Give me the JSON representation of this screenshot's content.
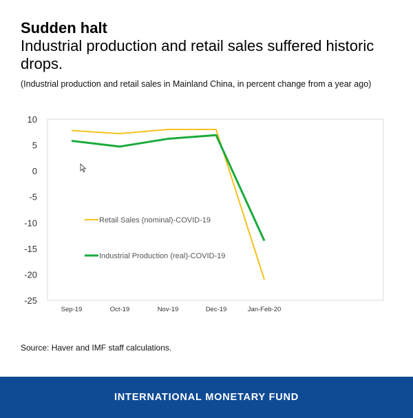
{
  "header": {
    "title": "Sudden halt",
    "subtitle": "Industrial production and retail sales suffered historic drops.",
    "note": "(Industrial production and retail sales in Mainland China, in percent change from a year ago)"
  },
  "chart_data": {
    "type": "line",
    "categories": [
      "Sep-19",
      "Oct-19",
      "Nov-19",
      "Dec-19",
      "Jan-Feb-20"
    ],
    "series": [
      {
        "name": "Retail Sales (nominal)-COVID-19",
        "color": "#f5c11d",
        "values": [
          7.8,
          7.2,
          8.0,
          8.0,
          -21
        ]
      },
      {
        "name": "Industrial Production (real)-COVID-19",
        "color": "#1aaa3c",
        "values": [
          5.8,
          4.7,
          6.2,
          6.9,
          -13.5
        ]
      }
    ],
    "yticks": [
      10,
      5,
      0,
      -5,
      -10,
      -15,
      -20,
      -25
    ],
    "ytick_labels": [
      "10",
      "5",
      "0",
      "-5",
      "-10",
      "-15",
      "-20",
      "-25"
    ],
    "ylim": [
      -25,
      10
    ],
    "xlabel": "",
    "ylabel": "",
    "legend_position": "inside-left",
    "grid": false
  },
  "source": "Source: Haver and IMF staff calculations.",
  "footer": {
    "label": "INTERNATIONAL MONETARY FUND",
    "color": "#0f4b95"
  },
  "cursor": {
    "icon": "mouse-pointer-icon"
  }
}
